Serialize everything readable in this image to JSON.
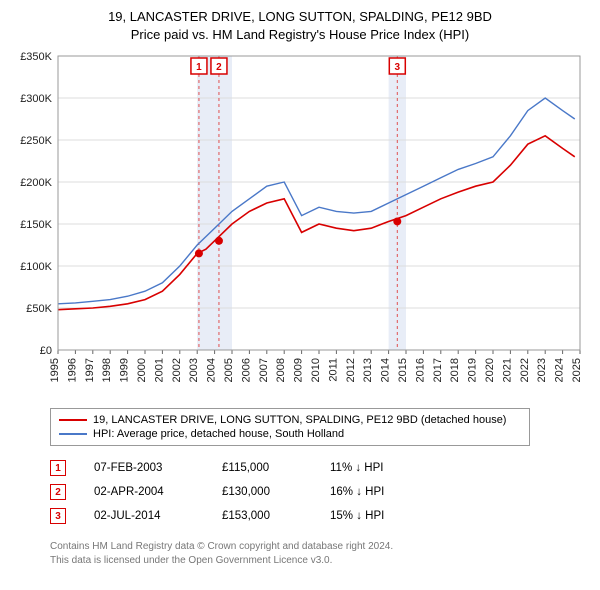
{
  "title_line1": "19, LANCASTER DRIVE, LONG SUTTON, SPALDING, PE12 9BD",
  "title_line2": "Price paid vs. HM Land Registry's House Price Index (HPI)",
  "chart": {
    "type": "line",
    "background_color": "#ffffff",
    "grid_color": "#dddddd",
    "chart_border_color": "#999999",
    "ylabel_color": "#222222",
    "ylim": [
      0,
      350000
    ],
    "ytick_step": 50000,
    "yticks": [
      "£0",
      "£50K",
      "£100K",
      "£150K",
      "£200K",
      "£250K",
      "£300K",
      "£350K"
    ],
    "xlim": [
      1995,
      2025
    ],
    "xticks": [
      1995,
      1996,
      1997,
      1998,
      1999,
      2000,
      2001,
      2002,
      2003,
      2004,
      2005,
      2006,
      2007,
      2008,
      2009,
      2010,
      2011,
      2012,
      2013,
      2014,
      2015,
      2016,
      2017,
      2018,
      2019,
      2020,
      2021,
      2022,
      2023,
      2024,
      2025
    ],
    "event_band_color": "#e8edf7",
    "event_line_color": "#e05050",
    "event_line_dash": "3,3",
    "series": [
      {
        "name": "property",
        "color": "#d80000",
        "width": 1.6,
        "data": [
          [
            1995,
            48000
          ],
          [
            1996,
            49000
          ],
          [
            1997,
            50000
          ],
          [
            1998,
            52000
          ],
          [
            1999,
            55000
          ],
          [
            2000,
            60000
          ],
          [
            2001,
            70000
          ],
          [
            2002,
            90000
          ],
          [
            2003,
            115000
          ],
          [
            2003.5,
            120000
          ],
          [
            2004,
            130000
          ],
          [
            2005,
            150000
          ],
          [
            2006,
            165000
          ],
          [
            2007,
            175000
          ],
          [
            2008,
            180000
          ],
          [
            2008.5,
            160000
          ],
          [
            2009,
            140000
          ],
          [
            2010,
            150000
          ],
          [
            2011,
            145000
          ],
          [
            2012,
            142000
          ],
          [
            2013,
            145000
          ],
          [
            2014,
            153000
          ],
          [
            2015,
            160000
          ],
          [
            2016,
            170000
          ],
          [
            2017,
            180000
          ],
          [
            2018,
            188000
          ],
          [
            2019,
            195000
          ],
          [
            2020,
            200000
          ],
          [
            2021,
            220000
          ],
          [
            2022,
            245000
          ],
          [
            2023,
            255000
          ],
          [
            2024,
            240000
          ],
          [
            2024.7,
            230000
          ]
        ]
      },
      {
        "name": "hpi",
        "color": "#4a78c8",
        "width": 1.4,
        "data": [
          [
            1995,
            55000
          ],
          [
            1996,
            56000
          ],
          [
            1997,
            58000
          ],
          [
            1998,
            60000
          ],
          [
            1999,
            64000
          ],
          [
            2000,
            70000
          ],
          [
            2001,
            80000
          ],
          [
            2002,
            100000
          ],
          [
            2003,
            125000
          ],
          [
            2004,
            145000
          ],
          [
            2005,
            165000
          ],
          [
            2006,
            180000
          ],
          [
            2007,
            195000
          ],
          [
            2008,
            200000
          ],
          [
            2008.5,
            180000
          ],
          [
            2009,
            160000
          ],
          [
            2010,
            170000
          ],
          [
            2011,
            165000
          ],
          [
            2012,
            163000
          ],
          [
            2013,
            165000
          ],
          [
            2014,
            175000
          ],
          [
            2015,
            185000
          ],
          [
            2016,
            195000
          ],
          [
            2017,
            205000
          ],
          [
            2018,
            215000
          ],
          [
            2019,
            222000
          ],
          [
            2020,
            230000
          ],
          [
            2021,
            255000
          ],
          [
            2022,
            285000
          ],
          [
            2023,
            300000
          ],
          [
            2024,
            285000
          ],
          [
            2024.7,
            275000
          ]
        ]
      }
    ],
    "sale_markers": [
      {
        "n": "1",
        "year": 2003.1,
        "price": 115000,
        "color": "#d80000"
      },
      {
        "n": "2",
        "year": 2004.25,
        "price": 130000,
        "color": "#d80000"
      },
      {
        "n": "3",
        "year": 2014.5,
        "price": 153000,
        "color": "#d80000"
      }
    ]
  },
  "legend": {
    "items": [
      {
        "color": "#d80000",
        "label": "19, LANCASTER DRIVE, LONG SUTTON, SPALDING, PE12 9BD (detached house)"
      },
      {
        "color": "#4a78c8",
        "label": "HPI: Average price, detached house, South Holland"
      }
    ]
  },
  "sales": [
    {
      "n": "1",
      "date": "07-FEB-2003",
      "price": "£115,000",
      "pct": "11% ↓ HPI",
      "color": "#d80000"
    },
    {
      "n": "2",
      "date": "02-APR-2004",
      "price": "£130,000",
      "pct": "16% ↓ HPI",
      "color": "#d80000"
    },
    {
      "n": "3",
      "date": "02-JUL-2014",
      "price": "£153,000",
      "pct": "15% ↓ HPI",
      "color": "#d80000"
    }
  ],
  "footer_line1": "Contains HM Land Registry data © Crown copyright and database right 2024.",
  "footer_line2": "This data is licensed under the Open Government Licence v3.0."
}
